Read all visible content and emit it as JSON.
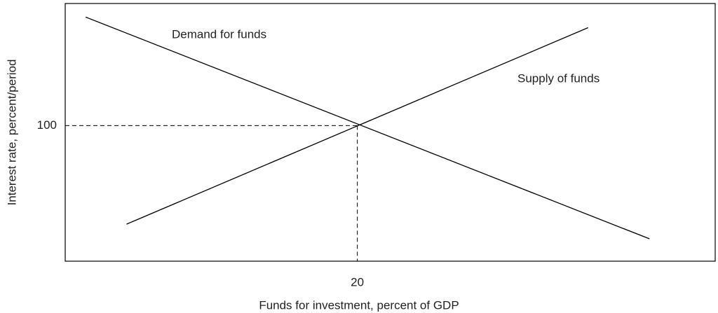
{
  "chart_data": {
    "type": "line",
    "xlabel": "Funds for investment, percent of GDP",
    "ylabel": "Interest rate, percent/period",
    "xlim": [
      0,
      44.5
    ],
    "ylim": [
      0,
      190
    ],
    "xticks": [
      20
    ],
    "yticks": [
      100
    ],
    "series": [
      {
        "name": "Demand for funds",
        "color": "#000000",
        "x": [
          1.4,
          40
        ],
        "values": [
          180,
          16.5
        ]
      },
      {
        "name": "Supply of funds",
        "color": "#000000",
        "x": [
          4.2,
          35.8
        ],
        "values": [
          27.3,
          172.2
        ]
      }
    ],
    "grid": false
  }
}
